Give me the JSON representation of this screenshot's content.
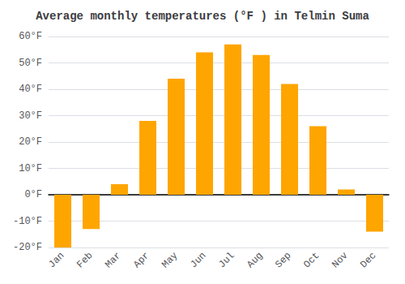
{
  "chart_data": {
    "type": "bar",
    "title": "Average monthly temperatures (°F ) in Telmin Suma",
    "categories": [
      "Jan",
      "Feb",
      "Mar",
      "Apr",
      "May",
      "Jun",
      "Jul",
      "Aug",
      "Sep",
      "Oct",
      "Nov",
      "Dec"
    ],
    "values": [
      -20,
      -13,
      4,
      28,
      44,
      54,
      57,
      53,
      42,
      26,
      2,
      -14
    ],
    "color": "#FFA500",
    "ylim": [
      -20,
      60
    ],
    "yticks": [
      {
        "value": -20,
        "label": "-20°F"
      },
      {
        "value": -10,
        "label": "-10°F"
      },
      {
        "value": 0,
        "label": "0°F"
      },
      {
        "value": 10,
        "label": "10°F"
      },
      {
        "value": 20,
        "label": "20°F"
      },
      {
        "value": 30,
        "label": "30°F"
      },
      {
        "value": 40,
        "label": "40°F"
      },
      {
        "value": 50,
        "label": "50°F"
      },
      {
        "value": 60,
        "label": "60°F"
      }
    ],
    "grid": true
  }
}
